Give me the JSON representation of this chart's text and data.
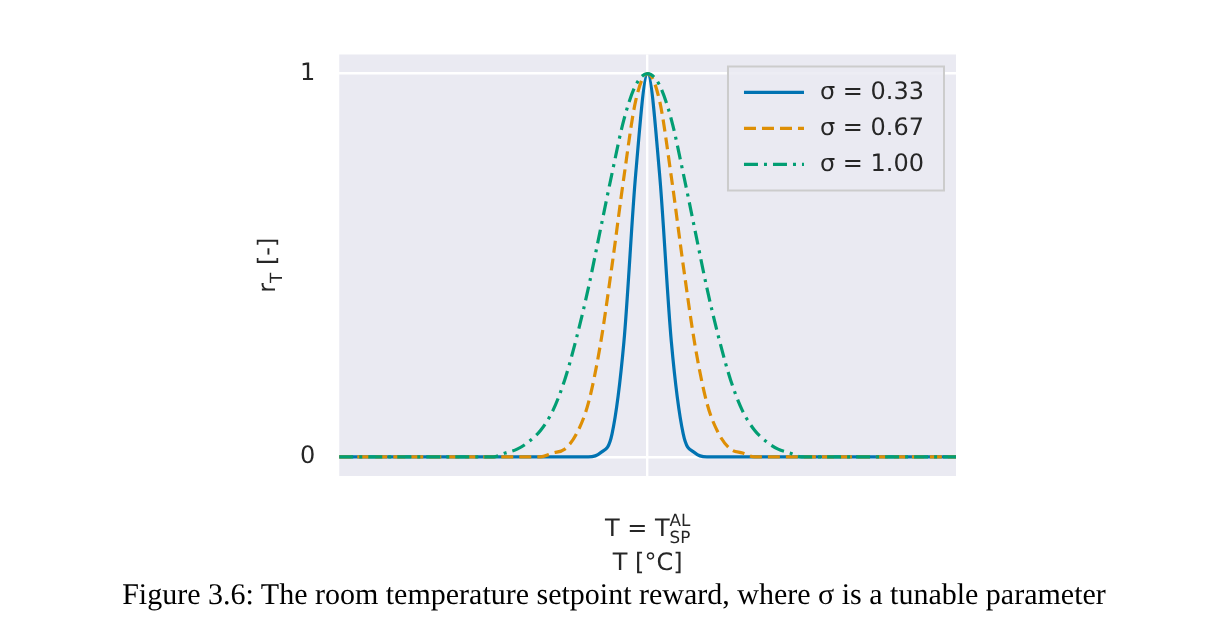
{
  "chart_data": {
    "type": "line",
    "xlabel": "T [°C]",
    "ylabel": "r$_{T}$ [-]",
    "categories": [
      null,
      null,
      null,
      null,
      null,
      null,
      null,
      null,
      null,
      null,
      null,
      null,
      null,
      null,
      null,
      null,
      null,
      null,
      null,
      null,
      null,
      null,
      null,
      null,
      null,
      null,
      "T = T$_{SP}$$^{AL}$",
      null,
      null,
      null,
      null,
      null,
      null,
      null,
      null,
      null,
      null,
      null,
      null,
      null,
      null,
      null,
      null,
      null,
      null,
      null,
      null,
      null,
      null,
      null,
      null,
      null,
      null
    ],
    "series": [
      {
        "name": "σ = 0.33",
        "color": "#0173b2",
        "line_style": "solid",
        "values": [
          0,
          0,
          0,
          0,
          0,
          0,
          0,
          0,
          0,
          0,
          0,
          0,
          0,
          0,
          0,
          0,
          0,
          0,
          0,
          0,
          0,
          0,
          0.01,
          0.06,
          0.3,
          0.74,
          1,
          0.74,
          0.3,
          0.06,
          0.01,
          0,
          0,
          0,
          0,
          0,
          0,
          0,
          0,
          0,
          0,
          0,
          0,
          0,
          0,
          0,
          0,
          0,
          0,
          0,
          0,
          0,
          0
        ]
      },
      {
        "name": "σ = 0.67",
        "color": "#de8f05",
        "line_style": "dashed",
        "values": [
          0,
          0,
          0,
          0,
          0,
          0,
          0,
          0,
          0,
          0,
          0,
          0,
          0,
          0,
          0,
          0,
          0,
          0,
          0.01,
          0.02,
          0.06,
          0.14,
          0.29,
          0.5,
          0.73,
          0.93,
          1,
          0.93,
          0.73,
          0.5,
          0.29,
          0.14,
          0.06,
          0.02,
          0.01,
          0,
          0,
          0,
          0,
          0,
          0,
          0,
          0,
          0,
          0,
          0,
          0,
          0,
          0,
          0,
          0,
          0,
          0
        ]
      },
      {
        "name": "σ = 1.00",
        "color": "#029e73",
        "line_style": "dashdot",
        "values": [
          0,
          0,
          0,
          0,
          0,
          0,
          0,
          0,
          0,
          0,
          0,
          0,
          0,
          0,
          0.01,
          0.02,
          0.04,
          0.07,
          0.12,
          0.2,
          0.31,
          0.44,
          0.59,
          0.74,
          0.88,
          0.97,
          1,
          0.97,
          0.88,
          0.74,
          0.59,
          0.44,
          0.31,
          0.2,
          0.12,
          0.07,
          0.04,
          0.02,
          0.01,
          0,
          0,
          0,
          0,
          0,
          0,
          0,
          0,
          0,
          0,
          0,
          0,
          0,
          0
        ]
      }
    ],
    "ylim": [
      -0.05,
      1.05
    ],
    "yticks": [
      0,
      1
    ],
    "grid": true,
    "legend": "top right",
    "marker": "none",
    "annotations": [
      "Figure 3.6: The room temperature setpoint reward, where σ is a tunable parameter"
    ]
  }
}
